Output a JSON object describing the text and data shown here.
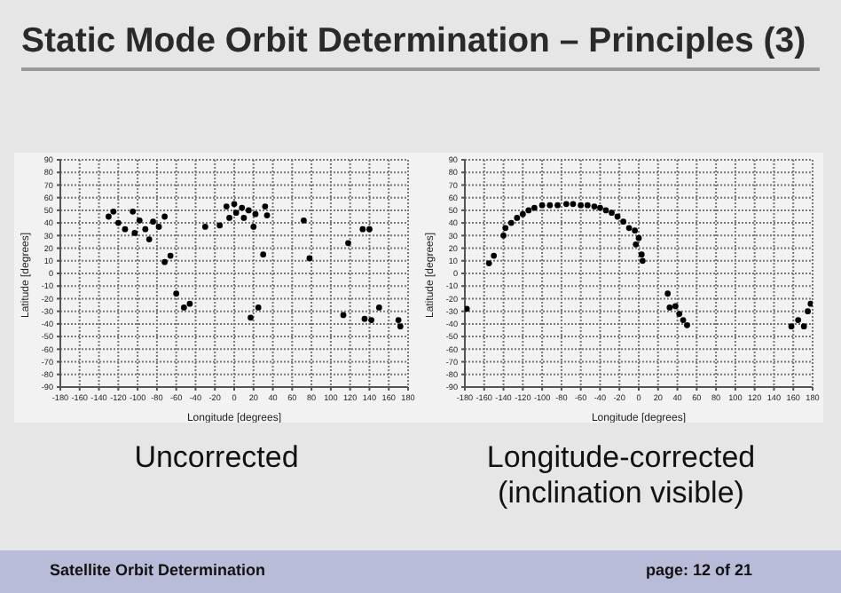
{
  "chart_data": [
    {
      "type": "scatter",
      "title": "Static Mode Orbit Determination – Principles (3)",
      "subtitle": "Uncorrected",
      "xlabel": "Longitude [degrees]",
      "ylabel": "Latitude [degrees]",
      "annotations": [
        "Satellite Orbit Determination",
        "page: 12 of 21"
      ],
      "xlim": [
        -180,
        180
      ],
      "ylim": [
        -90,
        90
      ],
      "xticks": [
        -180,
        -160,
        -140,
        -120,
        -100,
        -80,
        -60,
        -40,
        -20,
        0,
        20,
        40,
        60,
        80,
        100,
        120,
        140,
        160,
        180
      ],
      "yticks": [
        -90,
        -80,
        -70,
        -60,
        -50,
        -40,
        -30,
        -20,
        -10,
        0,
        10,
        20,
        30,
        40,
        50,
        60,
        70,
        80,
        90
      ],
      "grid": true,
      "marker": "circle",
      "series": [
        {
          "color": "#000000",
          "x": [
            -130,
            -125,
            -120,
            -113,
            -105,
            -103,
            -98,
            -92,
            -88,
            -84,
            -78,
            -72,
            -72,
            -66,
            -60,
            -52,
            -46,
            -30,
            -15,
            -8,
            -5,
            0,
            2,
            8,
            10,
            15,
            20,
            22,
            17,
            25,
            30,
            32,
            34,
            72,
            78,
            113,
            118,
            133,
            140,
            135,
            142,
            150,
            170,
            172
          ],
          "values": [
            45,
            49,
            40,
            35,
            49,
            32,
            42,
            35,
            27,
            41,
            37,
            45,
            9,
            14,
            -16,
            -27,
            -24,
            37,
            38,
            53,
            44,
            55,
            48,
            52,
            44,
            50,
            37,
            47,
            -35,
            -27,
            15,
            53,
            46,
            42,
            12,
            -33,
            24,
            35,
            35,
            -36,
            -37,
            -27,
            -37,
            -42
          ]
        }
      ]
    },
    {
      "type": "scatter",
      "subtitle": "Longitude-corrected (inclination visible)",
      "xlabel": "Longitude [degrees]",
      "ylabel": "Latitude [degrees]",
      "xlim": [
        -180,
        180
      ],
      "ylim": [
        -90,
        90
      ],
      "xticks": [
        -180,
        -160,
        -140,
        -120,
        -100,
        -80,
        -60,
        -40,
        -20,
        0,
        20,
        40,
        60,
        80,
        100,
        120,
        140,
        160,
        180
      ],
      "yticks": [
        -90,
        -80,
        -70,
        -60,
        -50,
        -40,
        -30,
        -20,
        -10,
        0,
        10,
        20,
        30,
        40,
        50,
        60,
        70,
        80,
        90
      ],
      "grid": true,
      "marker": "circle",
      "series": [
        {
          "color": "#000000",
          "x": [
            -178,
            -155,
            -150,
            -140,
            -138,
            -132,
            -126,
            -120,
            -114,
            -108,
            -100,
            -92,
            -84,
            -75,
            -68,
            -60,
            -53,
            -46,
            -40,
            -34,
            -28,
            -22,
            -16,
            -10,
            -4,
            -3,
            0,
            3,
            4,
            30,
            32,
            38,
            42,
            46,
            50,
            158,
            165,
            171,
            175,
            178
          ],
          "values": [
            -28,
            8,
            14,
            30,
            36,
            40,
            44,
            47,
            50,
            52,
            54,
            54,
            54,
            55,
            55,
            54,
            54,
            53,
            52,
            50,
            48,
            45,
            41,
            36,
            34,
            23,
            28,
            15,
            10,
            -16,
            -27,
            -26,
            -32,
            -37,
            -41,
            -42,
            -37,
            -42,
            -30,
            -24
          ]
        }
      ]
    }
  ]
}
